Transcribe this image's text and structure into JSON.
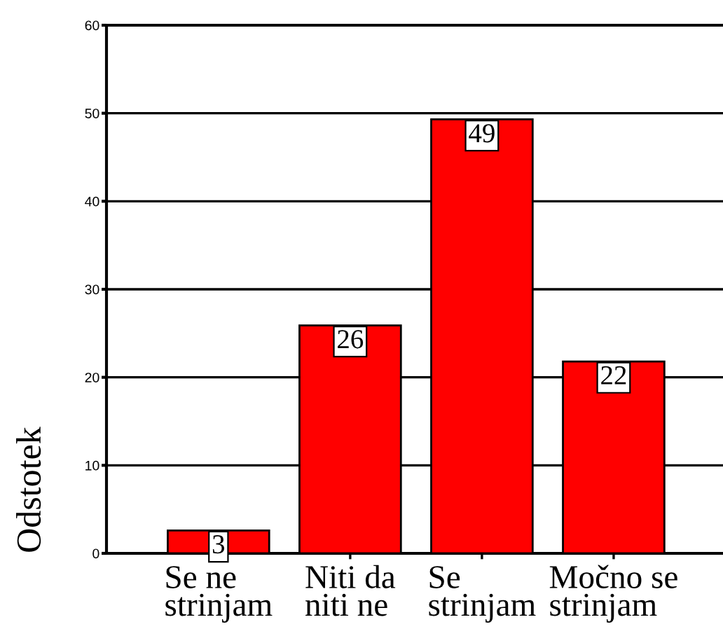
{
  "chart_data": {
    "type": "bar",
    "ylabel": "Odstotek",
    "categories": [
      "Se ne\nstrinjam",
      "Niti da\nniti ne",
      "Se\nstrinjam",
      "Močno se\nstrinjam"
    ],
    "values": [
      2.6,
      25.9,
      49.3,
      21.8
    ],
    "value_labels": [
      "3",
      "26",
      "49",
      "22"
    ],
    "color": "#ff0000",
    "ylim": [
      0,
      60
    ],
    "yticks": [
      0,
      10,
      20,
      30,
      40,
      50,
      60
    ],
    "grid": "y"
  }
}
